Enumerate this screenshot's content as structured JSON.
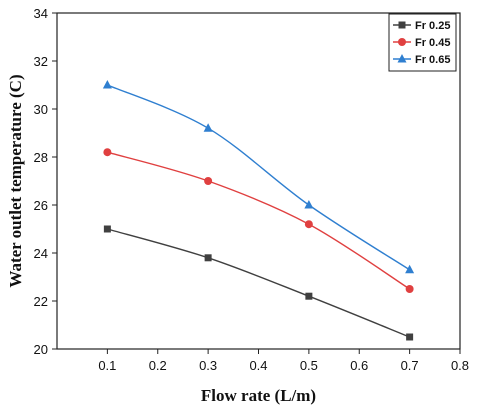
{
  "chart_data": {
    "type": "line",
    "title": "",
    "xlabel": "Flow rate (L/m)",
    "ylabel": "Water outlet temperature (C)",
    "xlim": [
      0.0,
      0.8
    ],
    "ylim": [
      20,
      34
    ],
    "xticks": [
      "0.1",
      "0.2",
      "0.3",
      "0.4",
      "0.5",
      "0.6",
      "0.7",
      "0.8"
    ],
    "yticks": [
      "20",
      "22",
      "24",
      "26",
      "28",
      "30",
      "32",
      "34"
    ],
    "grid": false,
    "legend_position": "top-right",
    "x": [
      0.1,
      0.3,
      0.5,
      0.7
    ],
    "series": [
      {
        "name": "Fr 0.25",
        "values": [
          25.0,
          23.8,
          22.2,
          20.5
        ],
        "color": "#404040",
        "marker": "square"
      },
      {
        "name": "Fr 0.45",
        "values": [
          28.2,
          27.0,
          25.2,
          22.5
        ],
        "color": "#e04040",
        "marker": "circle"
      },
      {
        "name": "Fr 0.65",
        "values": [
          31.0,
          29.2,
          26.0,
          23.3
        ],
        "color": "#2f7fd0",
        "marker": "triangle"
      }
    ]
  }
}
